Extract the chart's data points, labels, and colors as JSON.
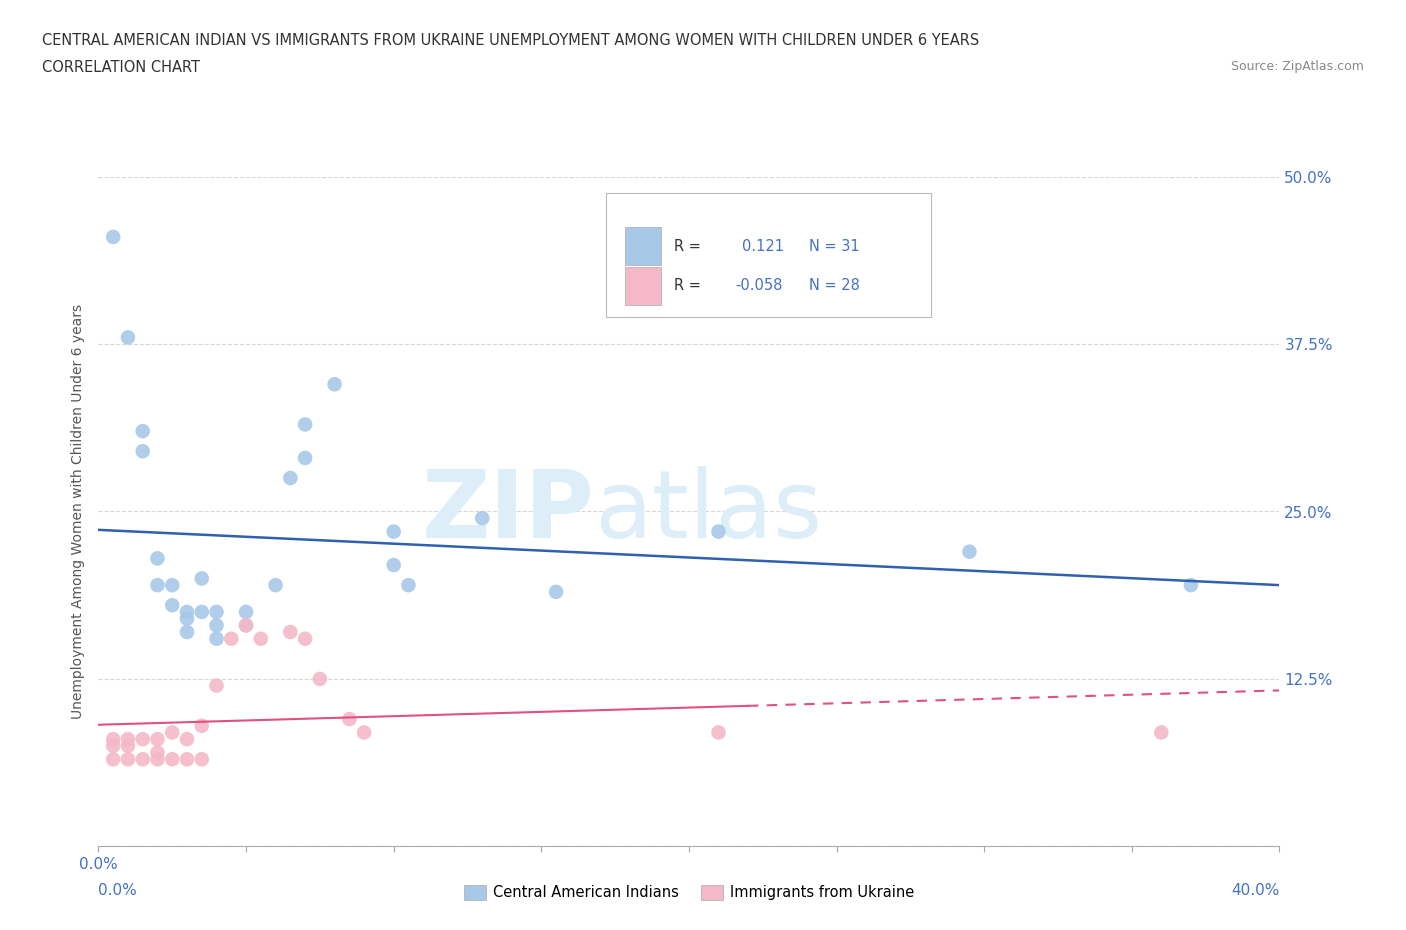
{
  "title_line1": "CENTRAL AMERICAN INDIAN VS IMMIGRANTS FROM UKRAINE UNEMPLOYMENT AMONG WOMEN WITH CHILDREN UNDER 6 YEARS",
  "title_line2": "CORRELATION CHART",
  "source_text": "Source: ZipAtlas.com",
  "ylabel": "Unemployment Among Women with Children Under 6 years",
  "xlim": [
    0.0,
    0.4
  ],
  "ylim": [
    0.0,
    0.5
  ],
  "ytick_values": [
    0.0,
    0.125,
    0.25,
    0.375,
    0.5
  ],
  "xtick_values": [
    0.0,
    0.05,
    0.1,
    0.15,
    0.2,
    0.25,
    0.3,
    0.35,
    0.4
  ],
  "blue_color": "#a8c8e8",
  "pink_color": "#f4b8c8",
  "blue_line_color": "#3060b0",
  "pink_line_color": "#e05080",
  "watermark_color": "#ddeef8",
  "background_color": "#ffffff",
  "R_blue": 0.121,
  "N_blue": 31,
  "R_pink": -0.058,
  "N_pink": 28,
  "blue_scatter_x": [
    0.005,
    0.01,
    0.015,
    0.015,
    0.02,
    0.02,
    0.025,
    0.025,
    0.03,
    0.03,
    0.03,
    0.035,
    0.035,
    0.04,
    0.04,
    0.04,
    0.05,
    0.05,
    0.06,
    0.065,
    0.07,
    0.07,
    0.08,
    0.1,
    0.1,
    0.105,
    0.13,
    0.155,
    0.21,
    0.295,
    0.37
  ],
  "blue_scatter_y": [
    0.455,
    0.38,
    0.295,
    0.31,
    0.215,
    0.195,
    0.195,
    0.18,
    0.175,
    0.17,
    0.16,
    0.175,
    0.2,
    0.175,
    0.165,
    0.155,
    0.175,
    0.165,
    0.195,
    0.275,
    0.315,
    0.29,
    0.345,
    0.235,
    0.21,
    0.195,
    0.245,
    0.19,
    0.235,
    0.22,
    0.195
  ],
  "pink_scatter_x": [
    0.005,
    0.005,
    0.005,
    0.01,
    0.01,
    0.01,
    0.015,
    0.015,
    0.02,
    0.02,
    0.02,
    0.025,
    0.025,
    0.03,
    0.03,
    0.035,
    0.035,
    0.04,
    0.045,
    0.05,
    0.055,
    0.065,
    0.07,
    0.075,
    0.085,
    0.09,
    0.21,
    0.36
  ],
  "pink_scatter_y": [
    0.08,
    0.075,
    0.065,
    0.08,
    0.075,
    0.065,
    0.08,
    0.065,
    0.08,
    0.07,
    0.065,
    0.085,
    0.065,
    0.08,
    0.065,
    0.09,
    0.065,
    0.12,
    0.155,
    0.165,
    0.155,
    0.16,
    0.155,
    0.125,
    0.095,
    0.085,
    0.085,
    0.085
  ]
}
